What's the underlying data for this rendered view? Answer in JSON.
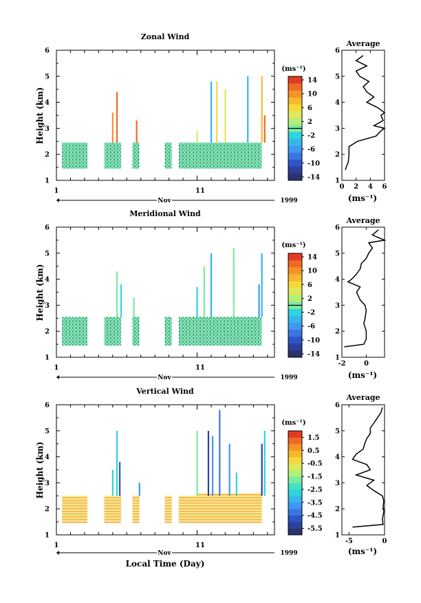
{
  "chart_data": [
    {
      "type": "heatmap",
      "title": "Zonal Wind",
      "ylabel": "Height (km)",
      "ylim": [
        1,
        6
      ],
      "yticks": [
        "1",
        "2",
        "3",
        "4",
        "5",
        "6"
      ],
      "xticks": [
        "1",
        "11"
      ],
      "x_month": "Nov",
      "x_year": "1999",
      "xlim_days": [
        1,
        16.5
      ],
      "colorbar": {
        "unit": "(ms⁻¹)",
        "range": [
          -15,
          15
        ],
        "step": 2,
        "tick_labels": [
          "14",
          "10",
          "6",
          "2",
          "-2",
          "-6",
          "-10",
          "-14"
        ],
        "zero_line": 2
      },
      "data_blocks": [
        {
          "x0": 1.4,
          "x1": 3.2,
          "y0": 1.45,
          "y1": 2.45
        },
        {
          "x0": 4.4,
          "x1": 5.6,
          "y0": 1.45,
          "y1": 2.45
        },
        {
          "x0": 6.4,
          "x1": 6.9,
          "y0": 1.45,
          "y1": 2.45
        },
        {
          "x0": 8.7,
          "x1": 9.2,
          "y0": 1.45,
          "y1": 2.45
        },
        {
          "x0": 9.7,
          "x1": 11.0,
          "y0": 1.45,
          "y1": 2.45
        },
        {
          "x0": 11.0,
          "x1": 15.6,
          "y0": 1.45,
          "y1": 2.45
        }
      ],
      "spikes": [
        {
          "x": 5.0,
          "top": 3.6,
          "value": 10
        },
        {
          "x": 5.3,
          "top": 4.4,
          "value": 12
        },
        {
          "x": 6.7,
          "top": 3.3,
          "value": 12
        },
        {
          "x": 11.0,
          "top": 2.9,
          "value": 4
        },
        {
          "x": 12.0,
          "top": 4.8,
          "value": -4
        },
        {
          "x": 12.4,
          "top": 4.8,
          "value": 6
        },
        {
          "x": 13.0,
          "top": 4.5,
          "value": 4
        },
        {
          "x": 14.6,
          "top": 5.0,
          "value": -4
        },
        {
          "x": 15.6,
          "top": 5.0,
          "value": 8
        },
        {
          "x": 15.8,
          "top": 3.5,
          "value": 12
        }
      ],
      "profile": {
        "title": "Average",
        "xlabel": "(ms⁻¹)",
        "xlim": [
          0,
          6
        ],
        "xticks": [
          "0",
          "2",
          "4",
          "6"
        ],
        "heights": [
          1.4,
          1.5,
          1.7,
          2.0,
          2.3,
          2.5,
          2.7,
          2.9,
          3.0,
          3.1,
          3.3,
          3.5,
          3.6,
          3.8,
          4.0,
          4.2,
          4.4,
          4.6,
          4.8,
          5.0,
          5.2,
          5.4,
          5.6,
          5.8
        ],
        "values": [
          0.5,
          0.6,
          0.9,
          1.0,
          1.0,
          2.2,
          4.8,
          5.5,
          6.0,
          4.5,
          5.8,
          5.5,
          6.0,
          5.0,
          3.5,
          4.5,
          3.5,
          3.0,
          3.8,
          2.5,
          2.0,
          3.5,
          2.0,
          3.0
        ]
      }
    },
    {
      "type": "heatmap",
      "title": "Meridional Wind",
      "ylabel": "Height (km)",
      "ylim": [
        1,
        6
      ],
      "yticks": [
        "1",
        "2",
        "3",
        "4",
        "5",
        "6"
      ],
      "xticks": [
        "1",
        "11"
      ],
      "x_month": "Nov",
      "x_year": "1999",
      "xlim_days": [
        1,
        16.5
      ],
      "colorbar": {
        "unit": "(ms⁻¹)",
        "range": [
          -15,
          15
        ],
        "step": 2,
        "tick_labels": [
          "14",
          "10",
          "6",
          "2",
          "-2",
          "-6",
          "-10",
          "-14"
        ],
        "zero_line": 2
      },
      "data_blocks": [
        {
          "x0": 1.4,
          "x1": 3.2,
          "y0": 1.45,
          "y1": 2.55
        },
        {
          "x0": 4.4,
          "x1": 5.6,
          "y0": 1.45,
          "y1": 2.55
        },
        {
          "x0": 6.4,
          "x1": 6.9,
          "y0": 1.45,
          "y1": 2.55
        },
        {
          "x0": 8.7,
          "x1": 9.2,
          "y0": 1.45,
          "y1": 2.55
        },
        {
          "x0": 9.7,
          "x1": 11.0,
          "y0": 1.45,
          "y1": 2.55
        },
        {
          "x0": 11.0,
          "x1": 15.6,
          "y0": 1.45,
          "y1": 2.55
        }
      ],
      "spikes": [
        {
          "x": 5.3,
          "top": 4.3,
          "value": 0
        },
        {
          "x": 5.6,
          "top": 3.8,
          "value": -2
        },
        {
          "x": 6.5,
          "top": 3.3,
          "value": 0
        },
        {
          "x": 11.0,
          "top": 3.7,
          "value": -2
        },
        {
          "x": 11.5,
          "top": 4.5,
          "value": 0
        },
        {
          "x": 12.0,
          "top": 5.0,
          "value": -4
        },
        {
          "x": 13.6,
          "top": 5.2,
          "value": 0
        },
        {
          "x": 15.4,
          "top": 3.8,
          "value": -6
        },
        {
          "x": 15.6,
          "top": 5.0,
          "value": -4
        }
      ],
      "profile": {
        "title": "Average",
        "xlabel": "(ms⁻¹)",
        "xlim": [
          -2,
          1.5
        ],
        "xticks": [
          "-2",
          "0"
        ],
        "heights": [
          1.4,
          1.5,
          1.7,
          2.0,
          2.3,
          2.5,
          2.8,
          3.0,
          3.2,
          3.5,
          3.7,
          3.9,
          4.0,
          4.2,
          4.4,
          4.6,
          4.8,
          5.0,
          5.2,
          5.4,
          5.5,
          5.7,
          5.9
        ],
        "values": [
          -1.8,
          -0.2,
          0.0,
          0.0,
          -0.2,
          -0.1,
          0.0,
          -0.1,
          -0.5,
          -0.8,
          -0.5,
          -1.5,
          -1.2,
          -0.8,
          -0.5,
          -0.4,
          0.0,
          0.2,
          0.5,
          0.2,
          1.5,
          0.5,
          1.0
        ]
      }
    },
    {
      "type": "heatmap",
      "title": "Vertical Wind",
      "ylabel": "Height (km)",
      "xlabel": "Local Time (Day)",
      "ylim": [
        1,
        6
      ],
      "yticks": [
        "1",
        "2",
        "3",
        "4",
        "5",
        "6"
      ],
      "xticks": [
        "1",
        "11"
      ],
      "x_month": "Nov",
      "x_year": "1999",
      "xlim_days": [
        1,
        16.5
      ],
      "colorbar": {
        "unit": "(ms⁻¹)",
        "range": [
          -6,
          2
        ],
        "step": 0.5,
        "tick_labels": [
          "1.5",
          "0.5",
          "-0.5",
          "-1.5",
          "-2.5",
          "-3.5",
          "-4.5",
          "-5.5"
        ],
        "zero_line": null
      },
      "data_blocks": [
        {
          "x0": 1.4,
          "x1": 3.2,
          "y0": 1.45,
          "y1": 2.5
        },
        {
          "x0": 4.4,
          "x1": 5.6,
          "y0": 1.45,
          "y1": 2.5
        },
        {
          "x0": 6.4,
          "x1": 6.9,
          "y0": 1.45,
          "y1": 2.5
        },
        {
          "x0": 8.7,
          "x1": 9.2,
          "y0": 1.45,
          "y1": 2.5
        },
        {
          "x0": 9.7,
          "x1": 11.0,
          "y0": 1.45,
          "y1": 2.5
        },
        {
          "x0": 11.0,
          "x1": 15.6,
          "y0": 1.45,
          "y1": 2.6
        }
      ],
      "spikes": [
        {
          "x": 5.0,
          "top": 3.5,
          "value": -3
        },
        {
          "x": 5.3,
          "top": 5.0,
          "value": -3
        },
        {
          "x": 5.5,
          "top": 3.8,
          "value": -5
        },
        {
          "x": 6.9,
          "top": 3.0,
          "value": -4
        },
        {
          "x": 11.0,
          "top": 5.0,
          "value": -2
        },
        {
          "x": 11.8,
          "top": 5.0,
          "value": -5.5
        },
        {
          "x": 12.1,
          "top": 4.8,
          "value": -4
        },
        {
          "x": 12.6,
          "top": 5.8,
          "value": -4.5
        },
        {
          "x": 13.3,
          "top": 4.5,
          "value": -4
        },
        {
          "x": 13.8,
          "top": 3.4,
          "value": -3
        },
        {
          "x": 15.6,
          "top": 4.5,
          "value": -5.5
        },
        {
          "x": 15.8,
          "top": 5.0,
          "value": -3
        }
      ],
      "profile": {
        "title": "Average",
        "xlabel": "(ms⁻¹)",
        "xlim": [
          -6,
          0
        ],
        "xticks": [
          "-5",
          "0"
        ],
        "heights": [
          1.3,
          1.4,
          1.6,
          1.9,
          2.1,
          2.3,
          2.5,
          2.7,
          2.9,
          3.1,
          3.3,
          3.5,
          3.7,
          3.9,
          4.1,
          4.3,
          4.5,
          4.7,
          4.9,
          5.1,
          5.3,
          5.5,
          5.7,
          5.9
        ],
        "values": [
          -4.5,
          -0.2,
          -0.3,
          -0.1,
          -0.2,
          -0.1,
          -0.3,
          -1.5,
          -2.5,
          -1.5,
          -4.0,
          -2.0,
          -2.5,
          -4.5,
          -4.0,
          -3.0,
          -2.8,
          -2.5,
          -2.0,
          -2.0,
          -1.5,
          -1.0,
          -0.5,
          -0.3
        ]
      }
    }
  ]
}
